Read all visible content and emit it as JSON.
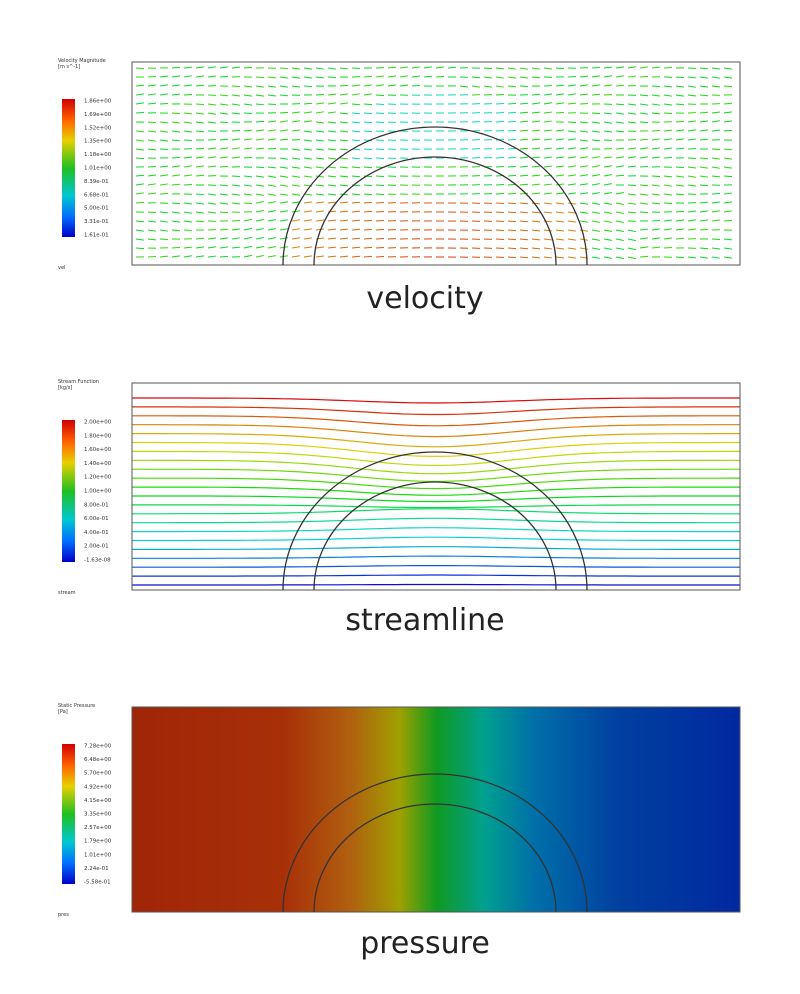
{
  "panels": [
    {
      "legend_title": "Velocity Magnitude",
      "legend_unit": "[m s^-1]",
      "colorbar_labels": [
        "1.86e+00",
        "1.69e+00",
        "1.52e+00",
        "1.35e+00",
        "1.18e+00",
        "1.01e+00",
        "8.39e-01",
        "6.68e-01",
        "5.00e-01",
        "3.31e-01",
        "1.61e-01"
      ],
      "corner_label": "vel",
      "caption": "velocity",
      "kind": "vectors"
    },
    {
      "legend_title": "Stream Function",
      "legend_unit": "[kg/s]",
      "colorbar_labels": [
        "2.00e+00",
        "1.80e+00",
        "1.60e+00",
        "1.40e+00",
        "1.20e+00",
        "1.00e+00",
        "8.00e-01",
        "6.00e-01",
        "4.00e-01",
        "2.00e-01",
        "-1.63e-08"
      ],
      "corner_label": "stream",
      "caption": "streamline",
      "kind": "streamlines"
    },
    {
      "legend_title": "Static Pressure",
      "legend_unit": "[Pa]",
      "colorbar_labels": [
        "7.28e+00",
        "6.48e+00",
        "5.70e+00",
        "4.92e+00",
        "4.15e+00",
        "3.35e+00",
        "2.57e+00",
        "1.79e+00",
        "1.01e+00",
        "2.24e-01",
        "-5.58e-01"
      ],
      "corner_label": "pres",
      "caption": "pressure",
      "kind": "contour"
    }
  ]
}
